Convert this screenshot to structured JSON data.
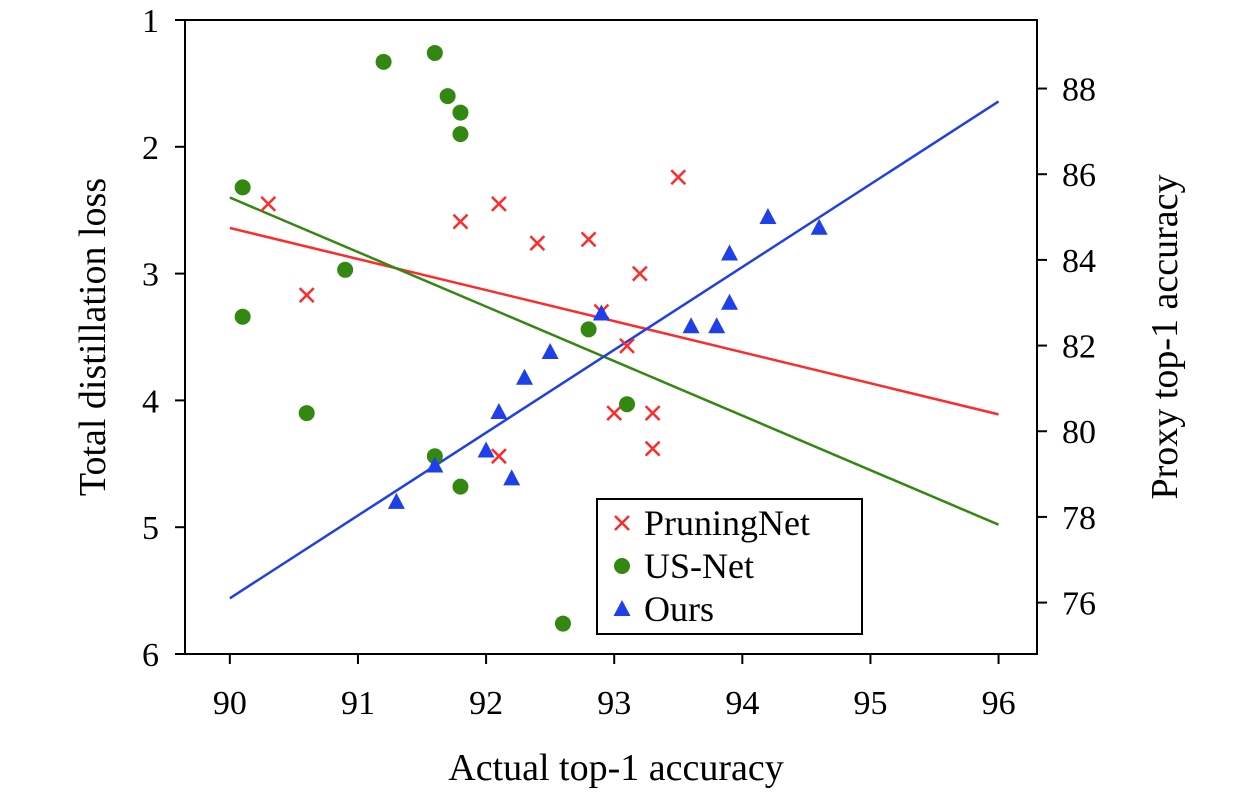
{
  "chart_data": {
    "type": "scatter",
    "title": "",
    "xlabel": "Actual top-1 accuracy",
    "ylabel_left": "Total distillation loss",
    "ylabel_right": "Proxy top-1 accuracy",
    "xlim": [
      89.65,
      96.3
    ],
    "xticks": [
      90,
      91,
      92,
      93,
      94,
      95,
      96
    ],
    "ylim_left": [
      1,
      6
    ],
    "yticks_left": [
      1,
      2,
      3,
      4,
      5,
      6
    ],
    "left_axis_inverted": true,
    "ylim_right": [
      74.8,
      89.6
    ],
    "yticks_right": [
      76,
      78,
      80,
      82,
      84,
      86,
      88
    ],
    "legend_position": "lower-right",
    "grid": false,
    "series": [
      {
        "name": "PruningNet",
        "axis": "left",
        "marker": "x",
        "color": "#ff2a2a",
        "points": [
          [
            90.3,
            2.45
          ],
          [
            90.6,
            3.17
          ],
          [
            91.8,
            2.59
          ],
          [
            92.1,
            2.45
          ],
          [
            92.4,
            2.76
          ],
          [
            92.8,
            2.73
          ],
          [
            93.5,
            2.24
          ],
          [
            93.2,
            3.0
          ],
          [
            92.9,
            3.3
          ],
          [
            93.1,
            3.57
          ],
          [
            93.0,
            4.1
          ],
          [
            93.3,
            4.1
          ],
          [
            93.3,
            4.38
          ],
          [
            92.1,
            4.44
          ]
        ],
        "fit_line": [
          [
            90,
            2.64
          ],
          [
            96,
            4.11
          ]
        ]
      },
      {
        "name": "US-Net",
        "axis": "left",
        "marker": "circle",
        "color": "#338811",
        "points": [
          [
            91.6,
            1.26
          ],
          [
            91.2,
            1.33
          ],
          [
            91.7,
            1.6
          ],
          [
            91.8,
            1.73
          ],
          [
            91.8,
            1.9
          ],
          [
            90.1,
            2.32
          ],
          [
            90.9,
            2.97
          ],
          [
            90.1,
            3.34
          ],
          [
            92.8,
            3.44
          ],
          [
            93.1,
            4.03
          ],
          [
            90.6,
            4.1
          ],
          [
            91.6,
            4.44
          ],
          [
            91.8,
            4.68
          ],
          [
            92.6,
            5.76
          ]
        ],
        "fit_line": [
          [
            90,
            2.4
          ],
          [
            96,
            4.98
          ]
        ]
      },
      {
        "name": "Ours",
        "axis": "right",
        "marker": "triangle",
        "color": "#1f3fe8",
        "points": [
          [
            91.3,
            78.35
          ],
          [
            91.6,
            79.2
          ],
          [
            92.0,
            79.55
          ],
          [
            92.1,
            80.45
          ],
          [
            92.2,
            78.9
          ],
          [
            92.3,
            81.25
          ],
          [
            92.5,
            81.85
          ],
          [
            92.9,
            82.75
          ],
          [
            93.6,
            82.45
          ],
          [
            93.8,
            82.45
          ],
          [
            93.9,
            83.0
          ],
          [
            93.9,
            84.15
          ],
          [
            94.2,
            85.0
          ],
          [
            94.6,
            84.75
          ]
        ],
        "fit_line": [
          [
            90,
            76.1
          ],
          [
            96,
            87.7
          ]
        ]
      }
    ]
  }
}
